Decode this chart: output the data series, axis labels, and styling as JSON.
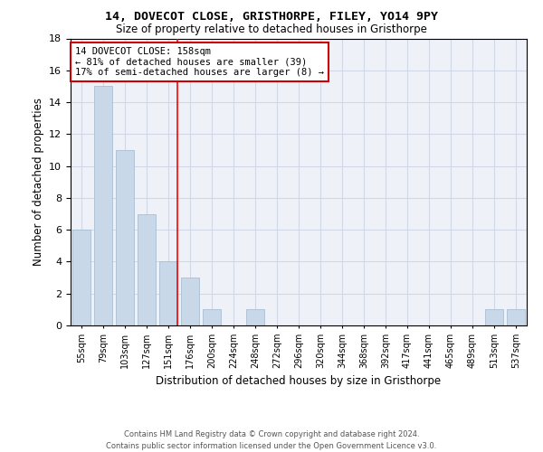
{
  "title": "14, DOVECOT CLOSE, GRISTHORPE, FILEY, YO14 9PY",
  "subtitle": "Size of property relative to detached houses in Gristhorpe",
  "xlabel": "Distribution of detached houses by size in Gristhorpe",
  "ylabel": "Number of detached properties",
  "categories": [
    "55sqm",
    "79sqm",
    "103sqm",
    "127sqm",
    "151sqm",
    "176sqm",
    "200sqm",
    "224sqm",
    "248sqm",
    "272sqm",
    "296sqm",
    "320sqm",
    "344sqm",
    "368sqm",
    "392sqm",
    "417sqm",
    "441sqm",
    "465sqm",
    "489sqm",
    "513sqm",
    "537sqm"
  ],
  "values": [
    6,
    15,
    11,
    7,
    4,
    3,
    1,
    0,
    1,
    0,
    0,
    0,
    0,
    0,
    0,
    0,
    0,
    0,
    0,
    1,
    1
  ],
  "bar_color": "#c8d8e8",
  "bar_edge_color": "#a0b8cc",
  "grid_color": "#d0d8e8",
  "bg_color": "#eef2f8",
  "red_line_index": 4,
  "annotation_text": "14 DOVECOT CLOSE: 158sqm\n← 81% of detached houses are smaller (39)\n17% of semi-detached houses are larger (8) →",
  "annotation_box_color": "#ffffff",
  "annotation_border_color": "#cc0000",
  "ylim": [
    0,
    18
  ],
  "yticks": [
    0,
    2,
    4,
    6,
    8,
    10,
    12,
    14,
    16,
    18
  ],
  "footer_line1": "Contains HM Land Registry data © Crown copyright and database right 2024.",
  "footer_line2": "Contains public sector information licensed under the Open Government Licence v3.0."
}
